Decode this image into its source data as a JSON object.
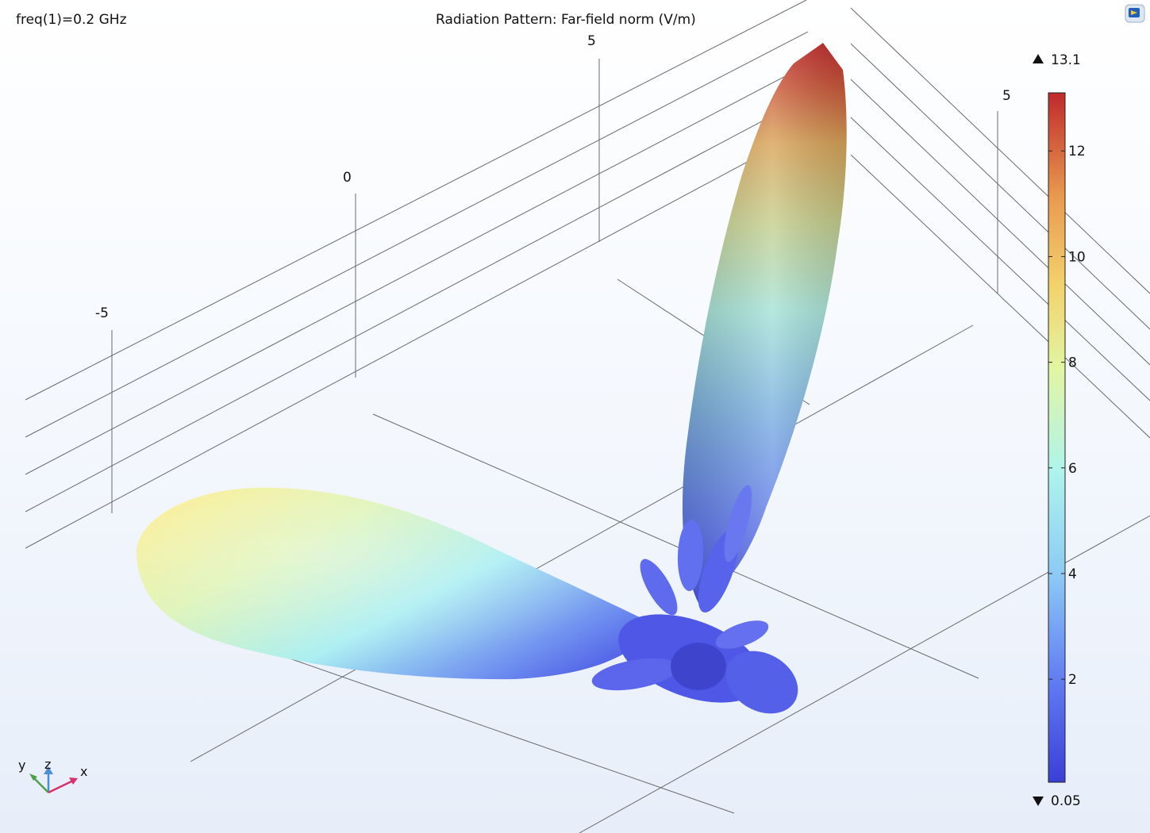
{
  "header": {
    "freq_label": "freq(1)=0.2 GHz",
    "title": "Radiation Pattern: Far-field norm (V/m)"
  },
  "grid": {
    "x_tick_labels": [
      "-5",
      "0",
      "5"
    ],
    "y_tick_labels": [
      "5"
    ]
  },
  "colorbar": {
    "max_label": "13.1",
    "min_label": "0.05",
    "ticks": [
      {
        "value": 12,
        "label": "12"
      },
      {
        "value": 10,
        "label": "10"
      },
      {
        "value": 8,
        "label": "8"
      },
      {
        "value": 6,
        "label": "6"
      },
      {
        "value": 4,
        "label": "4"
      },
      {
        "value": 2,
        "label": "2"
      }
    ],
    "colors": [
      "#3a3fd6",
      "#5f79f2",
      "#8ccaf5",
      "#aef4ec",
      "#e2f5a2",
      "#f3d26c",
      "#e89a4f",
      "#c0292b"
    ]
  },
  "axis_triad": {
    "x": "x",
    "y": "y",
    "z": "z"
  },
  "chart_data": {
    "type": "3d-radiation-pattern",
    "title": "Radiation Pattern: Far-field norm (V/m)",
    "parameter": "freq(1)=0.2 GHz",
    "color_range": [
      0.05,
      13.1
    ],
    "colorbar_ticks": [
      2,
      4,
      6,
      8,
      10,
      12
    ],
    "lobes": [
      {
        "name": "main",
        "peak_value": 13.1
      },
      {
        "name": "secondary",
        "peak_value": 8
      }
    ],
    "x_ticks": [
      -5,
      0,
      5
    ],
    "y_ticks": [
      5
    ]
  }
}
